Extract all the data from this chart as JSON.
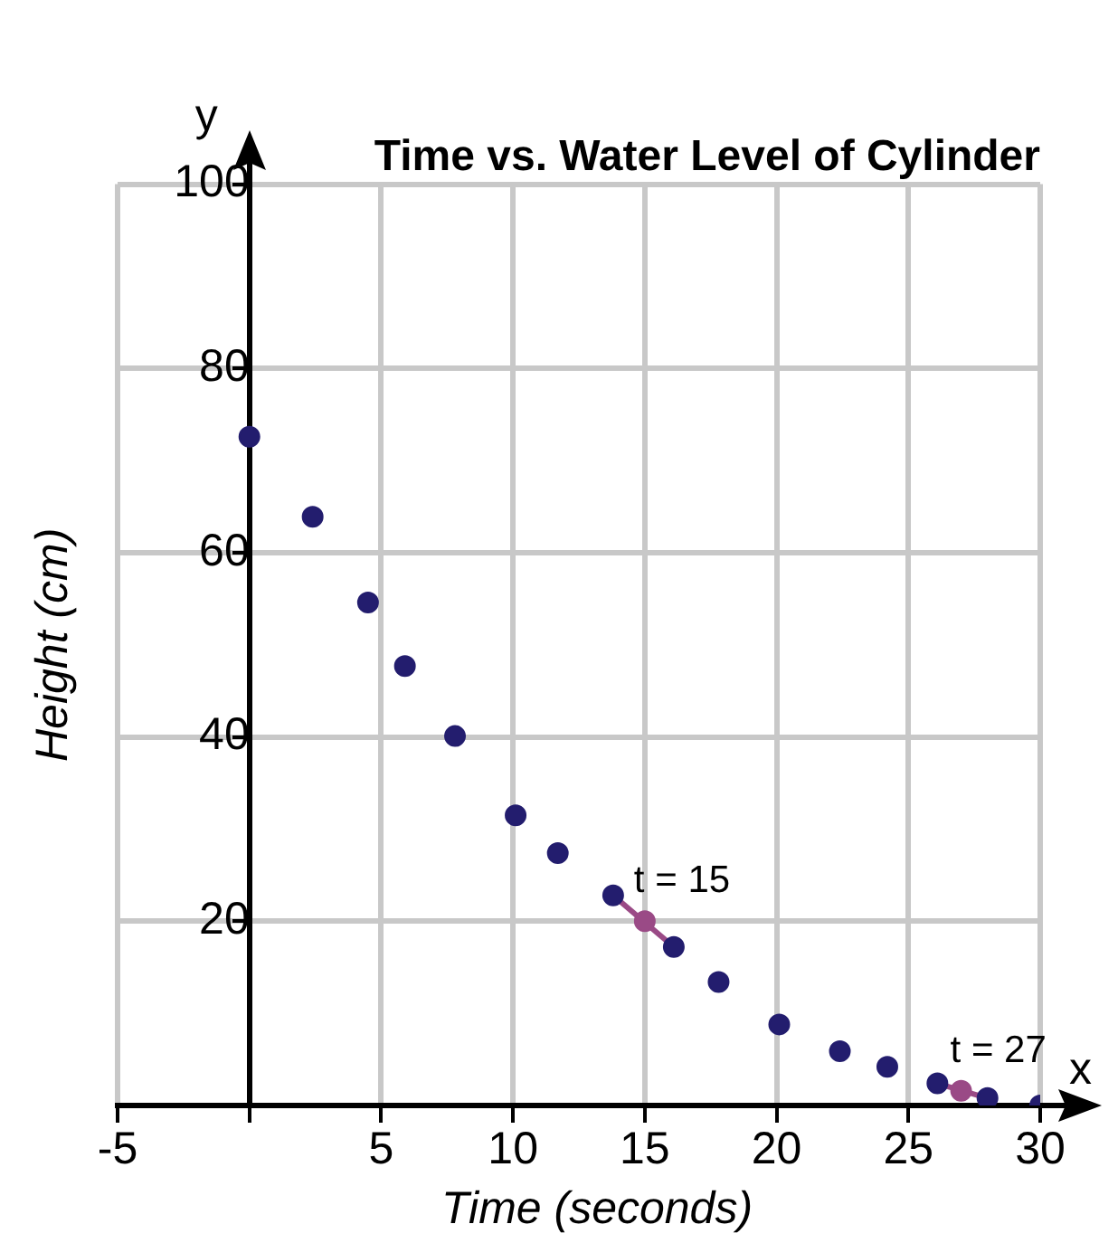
{
  "chart_data": {
    "type": "scatter",
    "title": "Time vs. Water Level of Cylinder",
    "xlabel": "Time (seconds)",
    "ylabel": "Height (cm)",
    "series": [
      {
        "color": "#231d6e",
        "x": [
          0,
          2.4,
          4.5,
          5.9,
          7.8,
          10.1,
          11.7,
          13.8,
          16.1,
          17.8,
          20.1,
          22.4,
          24.2,
          26.1,
          28,
          30
        ],
        "values": [
          72.6,
          63.9,
          54.6,
          47.7,
          40.1,
          31.5,
          27.4,
          22.8,
          17.2,
          13.4,
          8.8,
          5.9,
          4.2,
          2.4,
          0.8,
          0
        ]
      },
      {
        "type": "line",
        "color": "#9a4a86",
        "marker": "none",
        "x": [
          13.8,
          16.1
        ],
        "values": [
          22.8,
          17.2
        ]
      },
      {
        "type": "line",
        "color": "#9a4a86",
        "marker": "none",
        "x": [
          26.1,
          28
        ],
        "values": [
          2.4,
          0.8
        ]
      },
      {
        "color": "#9a4a86",
        "x": [
          15,
          27
        ],
        "values": [
          20,
          1.6
        ]
      }
    ],
    "xlim": [
      -5,
      30
    ],
    "xticks": [
      -5,
      {
        "value": 0,
        "label": null
      },
      5,
      10,
      15,
      20,
      25,
      30
    ],
    "ylim": [
      0,
      100
    ],
    "yticks": [
      {
        "value": 0,
        "label": null
      },
      20,
      40,
      60,
      80,
      100
    ],
    "grid": true,
    "marker": "circle",
    "annotations": [
      "x",
      "y",
      {
        "text": "t = 15",
        "x": 15,
        "y": 20
      },
      {
        "text": "t = 27",
        "x": 27,
        "y": 1.6
      }
    ]
  }
}
